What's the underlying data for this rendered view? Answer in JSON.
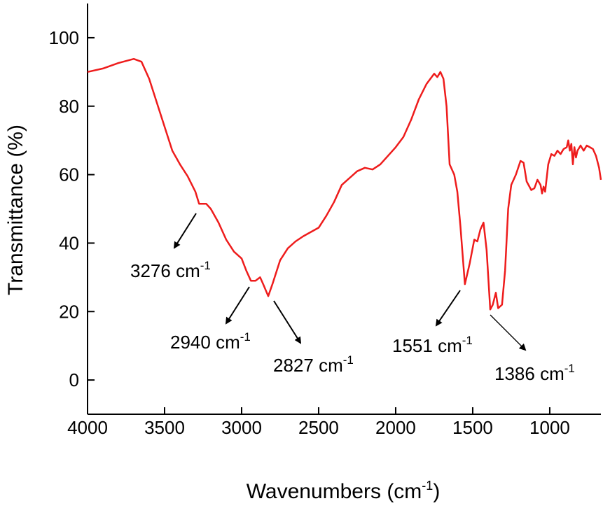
{
  "chart_data": {
    "type": "line",
    "ylabel": "Transmittance (%)",
    "xlabel": {
      "text": "Wavenumbers (cm",
      "sup": "-1",
      "after": ")"
    },
    "xlim": [
      4000,
      668
    ],
    "ylim": [
      -10,
      110
    ],
    "xticks": [
      4000,
      3500,
      3000,
      2500,
      2000,
      1500,
      1000
    ],
    "yticks": [
      0,
      20,
      40,
      60,
      80,
      100
    ],
    "x": [
      4000,
      3900,
      3800,
      3700,
      3650,
      3600,
      3550,
      3500,
      3450,
      3400,
      3350,
      3300,
      3276,
      3230,
      3200,
      3150,
      3100,
      3050,
      3000,
      2970,
      2940,
      2910,
      2880,
      2860,
      2827,
      2800,
      2750,
      2700,
      2650,
      2600,
      2500,
      2450,
      2400,
      2350,
      2300,
      2250,
      2200,
      2150,
      2100,
      2050,
      2000,
      1950,
      1900,
      1850,
      1800,
      1750,
      1730,
      1710,
      1690,
      1670,
      1650,
      1620,
      1600,
      1580,
      1551,
      1520,
      1490,
      1470,
      1450,
      1430,
      1410,
      1386,
      1370,
      1350,
      1335,
      1310,
      1290,
      1270,
      1250,
      1220,
      1190,
      1170,
      1150,
      1120,
      1100,
      1080,
      1060,
      1050,
      1040,
      1030,
      1010,
      990,
      970,
      950,
      930,
      910,
      890,
      880,
      870,
      860,
      850,
      840,
      830,
      820,
      800,
      780,
      760,
      740,
      720,
      700,
      680,
      668
    ],
    "series": [
      {
        "color": "#ee1c1c",
        "values": [
          90,
          91,
          92.6,
          93.8,
          93,
          88,
          81,
          74,
          67,
          63,
          59.5,
          55,
          51.5,
          51.5,
          50,
          46,
          41,
          37.5,
          35.5,
          32,
          29,
          29,
          30,
          28,
          24.5,
          28,
          35,
          38.5,
          40.5,
          42,
          44.5,
          48,
          52,
          57,
          59,
          61,
          62,
          61.5,
          63,
          65.5,
          68,
          71,
          76,
          82,
          86.5,
          89.5,
          88.5,
          90,
          88,
          80,
          63,
          60,
          55,
          45,
          28,
          34,
          41,
          40.5,
          44,
          46,
          38,
          20.6,
          22,
          25.5,
          21,
          22,
          32,
          50,
          57,
          60,
          64,
          63.5,
          58,
          55.5,
          56,
          58.5,
          57,
          54.5,
          56.5,
          55,
          63,
          66,
          65.5,
          67,
          66,
          67.5,
          68,
          70,
          67,
          69,
          63,
          68,
          65,
          67,
          68.5,
          67,
          68.5,
          68,
          67.5,
          65.5,
          62,
          58.5
        ]
      }
    ],
    "annotations": [
      {
        "text": "3276 cm",
        "sup": "-1"
      },
      {
        "text": "2940 cm",
        "sup": "-1"
      },
      {
        "text": "2827 cm",
        "sup": "-1"
      },
      {
        "text": "1551 cm",
        "sup": "-1"
      },
      {
        "text": "1386 cm",
        "sup": "-1"
      }
    ]
  }
}
